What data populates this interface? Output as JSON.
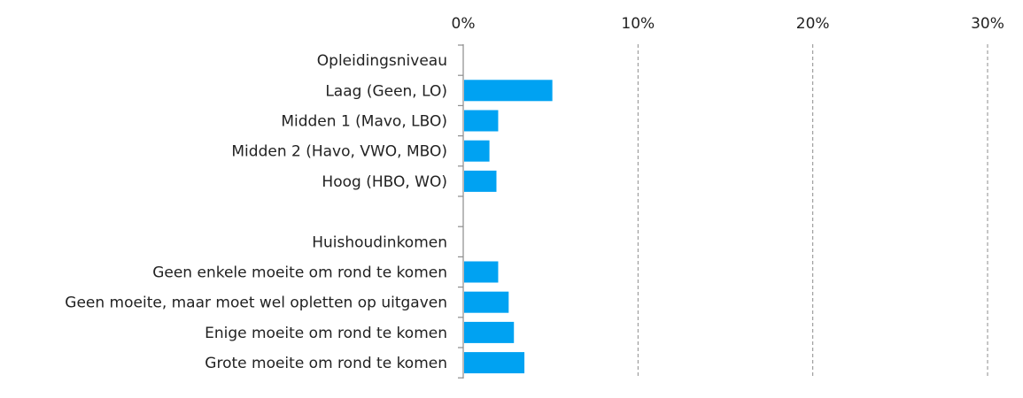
{
  "chart_data": {
    "type": "bar",
    "orientation": "horizontal",
    "title": "",
    "xlabel": "",
    "ylabel": "",
    "xlim": [
      0,
      30
    ],
    "x_ticks": [
      "0%",
      "10%",
      "20%",
      "30%"
    ],
    "x_axis_position": "top",
    "grid": true,
    "bar_color": "#00a2f2",
    "categories": [
      "Opleidingsniveau",
      "Laag (Geen, LO)",
      "Midden 1 (Mavo, LBO)",
      "Midden 2 (Havo, VWO, MBO)",
      "Hoog (HBO, WO)",
      "",
      "Huishoudinkomen",
      "Geen enkele moeite om rond te komen",
      "Geen moeite, maar moet wel opletten op uitgaven",
      "Enige moeite om rond te komen",
      "Grote moeite om rond te komen"
    ],
    "values": [
      null,
      5.1,
      2.0,
      1.5,
      1.9,
      null,
      null,
      2.0,
      2.6,
      2.9,
      3.5
    ]
  }
}
